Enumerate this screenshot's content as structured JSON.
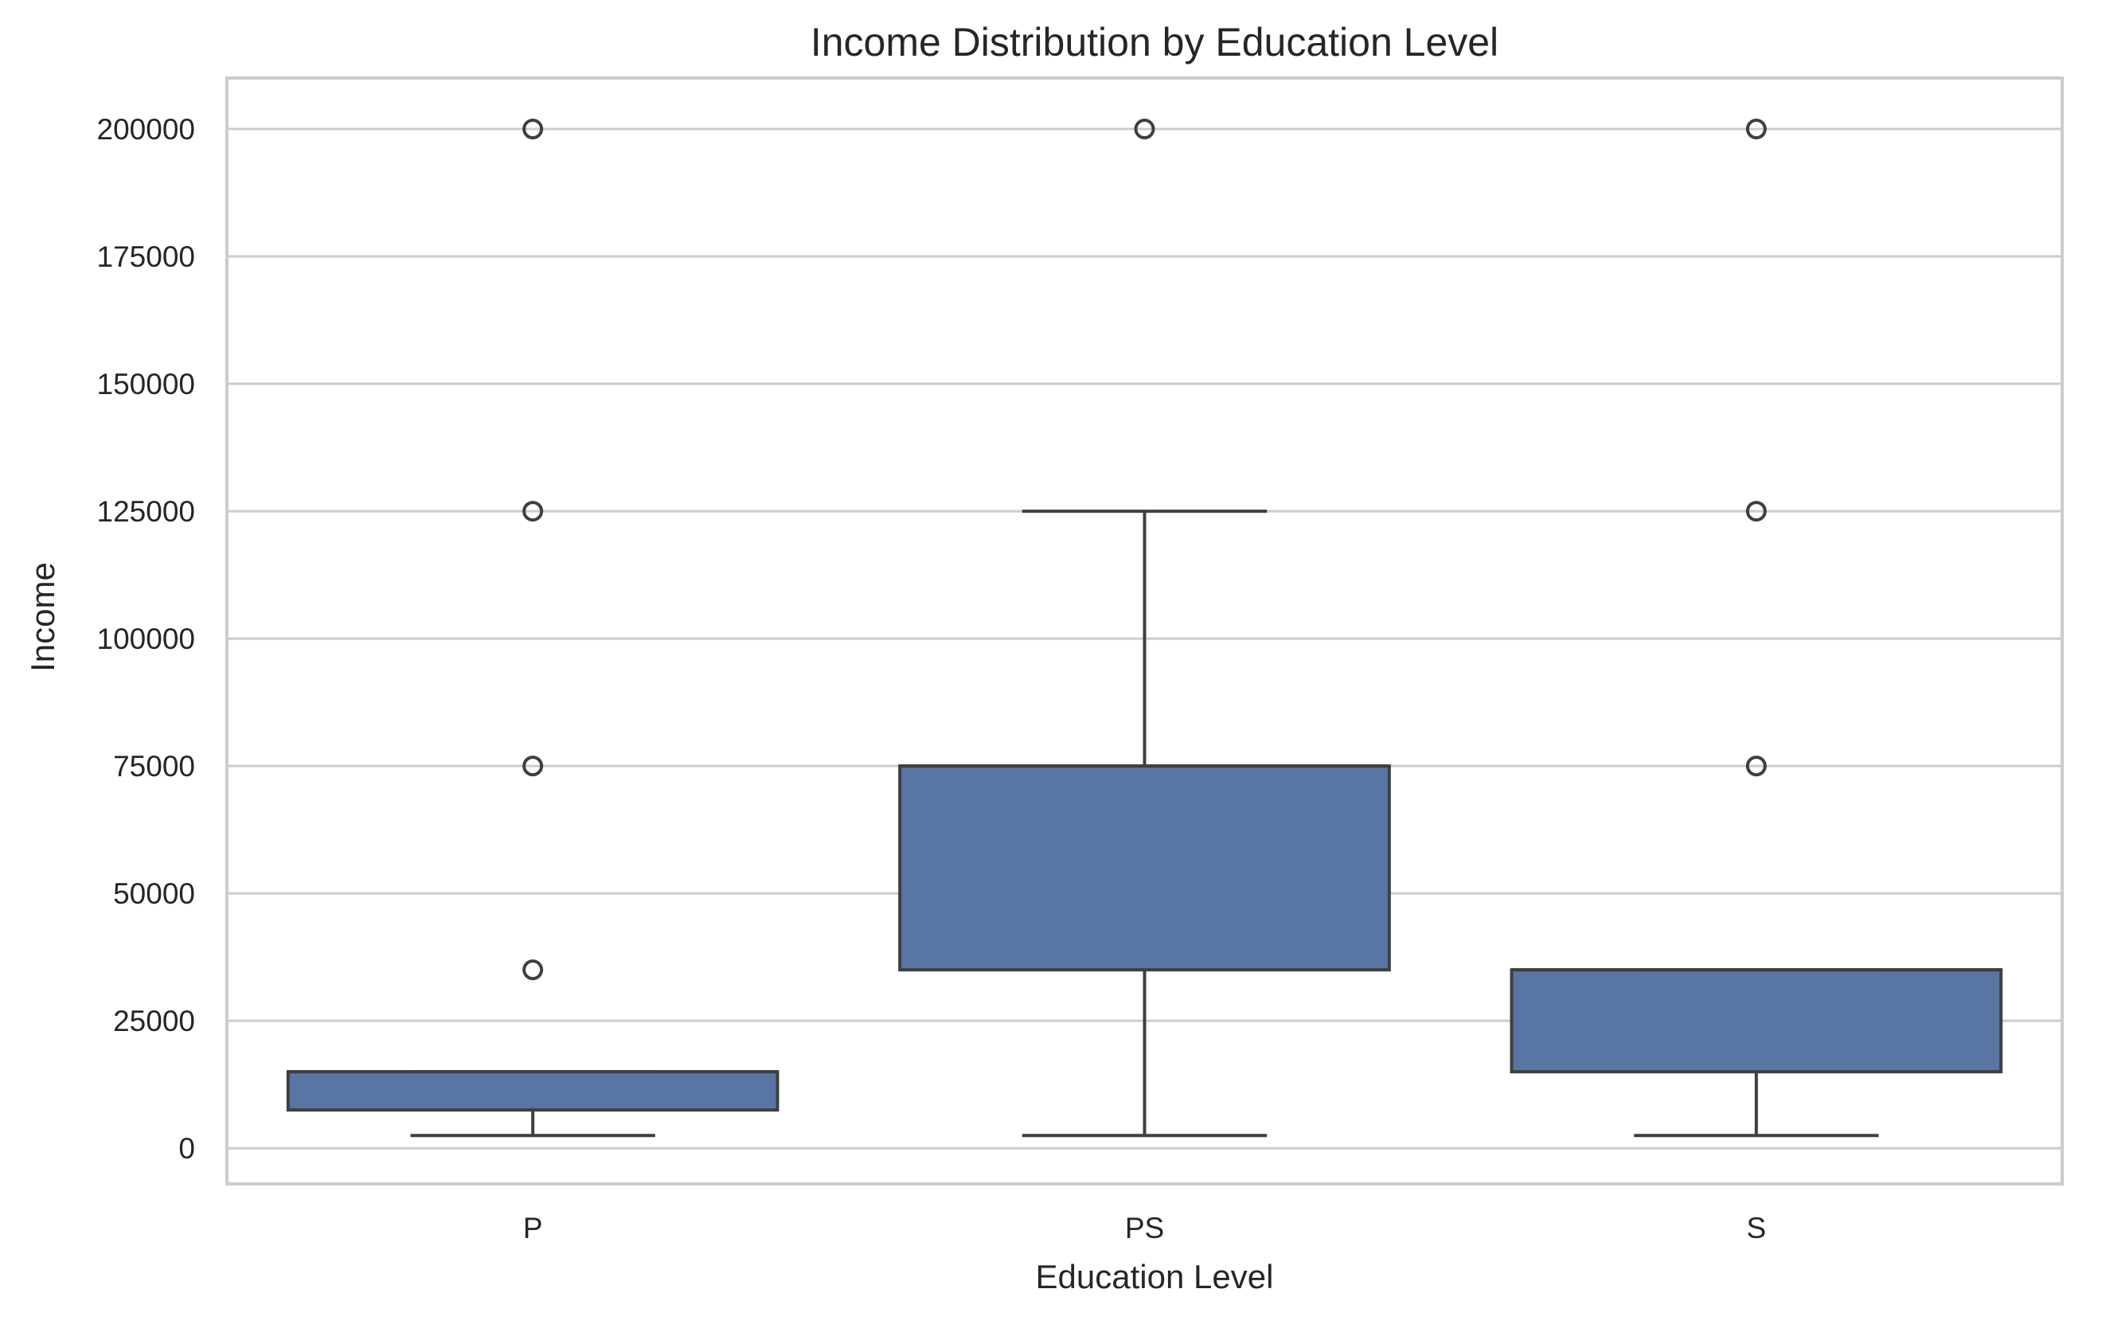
{
  "chart_data": {
    "type": "box",
    "title": "Income Distribution by Education Level",
    "xlabel": "Education Level",
    "ylabel": "Income",
    "ylim": [
      -7000,
      210000
    ],
    "yticks": [
      "0",
      "25000",
      "50000",
      "75000",
      "100000",
      "125000",
      "150000",
      "175000",
      "200000"
    ],
    "grid": "horizontal",
    "legend": "none",
    "colors": {
      "box_fill": "#5975a4",
      "line": "#3f3f3f",
      "grid": "#cccccc",
      "frame": "#cccccc"
    },
    "categories": [
      "P",
      "PS",
      "S"
    ],
    "boxes": [
      {
        "category": "P",
        "whisker_low": 2500,
        "q1": 7500,
        "median": 15000,
        "q3": 15000,
        "whisker_high": 15000,
        "outliers": [
          35000,
          75000,
          125000,
          200000
        ]
      },
      {
        "category": "PS",
        "whisker_low": 2500,
        "q1": 35000,
        "median": 75000,
        "q3": 75000,
        "whisker_high": 125000,
        "outliers": [
          200000
        ]
      },
      {
        "category": "S",
        "whisker_low": 2500,
        "q1": 15000,
        "median": 35000,
        "q3": 35000,
        "whisker_high": 35000,
        "outliers": [
          75000,
          125000,
          200000
        ]
      }
    ]
  }
}
